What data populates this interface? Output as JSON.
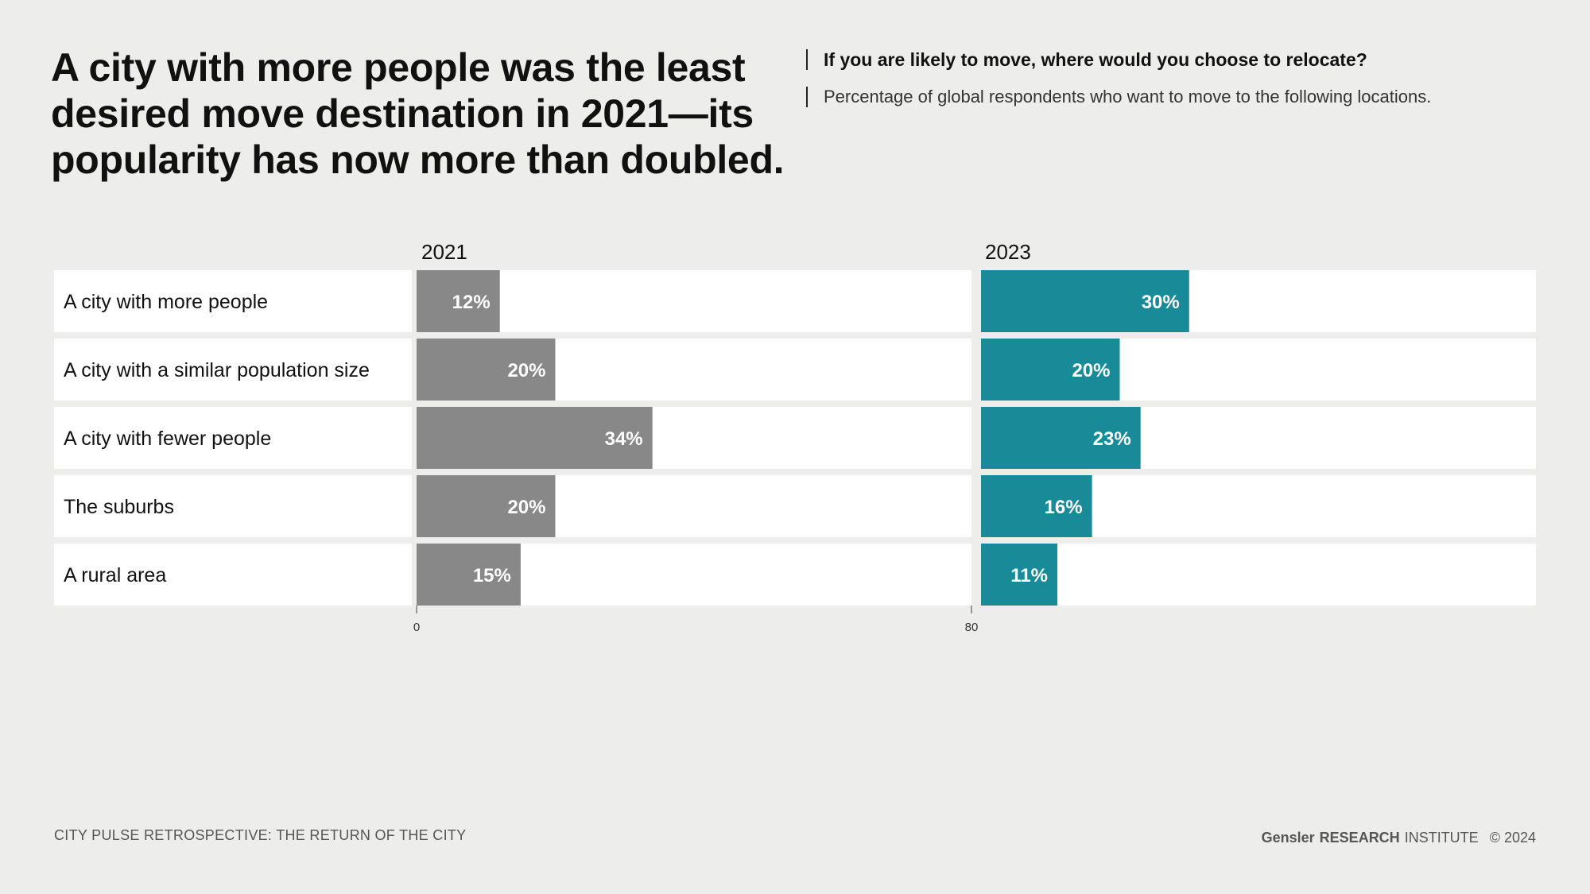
{
  "header": {
    "title": "A city with more people was the least desired move destination in 2021—its popularity has now more than doubled.",
    "question": "If you are likely to move, where would you choose to relocate?",
    "subtitle": "Percentage of global respondents who want to move to the following locations."
  },
  "chart_data": {
    "type": "bar",
    "orientation": "horizontal",
    "categories": [
      "A city with more people",
      "A city with a similar population size",
      "A city with fewer people",
      "The suburbs",
      "A rural area"
    ],
    "series": [
      {
        "name": "2021",
        "values": [
          12,
          20,
          34,
          20,
          15
        ],
        "color": "#888888"
      },
      {
        "name": "2023",
        "values": [
          30,
          20,
          23,
          16,
          11
        ],
        "color": "#198a97"
      }
    ],
    "value_suffix": "%",
    "xlim": [
      0,
      80
    ],
    "axis_ticks": [
      "0",
      "80"
    ],
    "grid": false
  },
  "footer": {
    "left": "CITY PULSE RETROSPECTIVE: THE RETURN OF THE CITY",
    "brand": "Gensler",
    "research": "RESEARCH",
    "institute": "INSTITUTE",
    "copyright": "© 2024"
  }
}
